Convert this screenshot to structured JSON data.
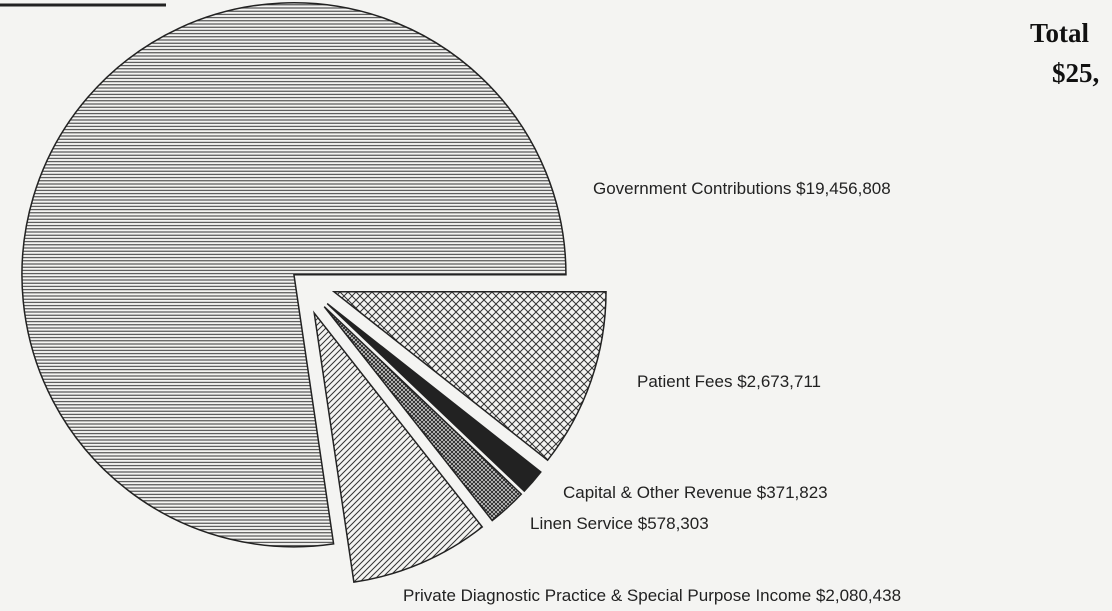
{
  "chart_data": {
    "type": "pie",
    "title": "Total",
    "subtitle": "$25,",
    "categories": [
      "Government Contributions",
      "Patient Fees",
      "Capital & Other Revenue",
      "Linen Service",
      "Private Diagnostic Practice & Special Purpose Income"
    ],
    "values": [
      19456808,
      2673711,
      371823,
      578303,
      2080438
    ],
    "value_labels": [
      "$19,456,808",
      "$2,673,711",
      "$371,823",
      "$578,303",
      "$2,080,438"
    ]
  }
}
